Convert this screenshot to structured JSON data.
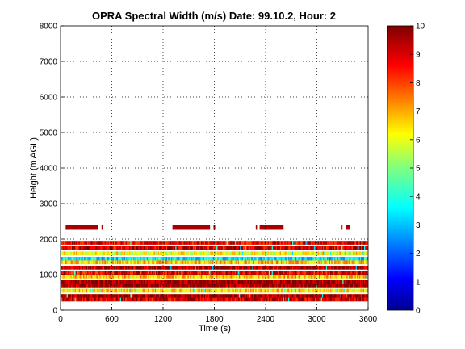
{
  "chart_data": {
    "type": "heatmap",
    "title": "OPRA Spectral Width (m/s)  Date: 99.10.2, Hour: 2",
    "xlabel": "Time (s)",
    "ylabel": "Height (m AGL)",
    "xlim": [
      0,
      3600
    ],
    "ylim": [
      0,
      8000
    ],
    "xticks": [
      "0",
      "600",
      "1200",
      "1800",
      "2400",
      "3000",
      "3600"
    ],
    "yticks": [
      "0",
      "1000",
      "2000",
      "3000",
      "4000",
      "5000",
      "6000",
      "7000",
      "8000"
    ],
    "grid": true,
    "colorbar": {
      "clim": [
        0,
        10
      ],
      "ticks": [
        "0",
        "1",
        "2",
        "3",
        "4",
        "5",
        "6",
        "7",
        "8",
        "9",
        "10"
      ],
      "colormap": "jet"
    },
    "data_region": {
      "x_range_s": [
        0,
        3600
      ],
      "height_range_m": [
        250,
        1950
      ],
      "description_values": [
        {
          "height_m": 1900,
          "value": 9.0
        },
        {
          "height_m": 1750,
          "value": 9.2
        },
        {
          "height_m": 1600,
          "value": 6.2
        },
        {
          "height_m": 1450,
          "value": 3.5
        },
        {
          "height_m": 1350,
          "value": 6.8
        },
        {
          "height_m": 1200,
          "value": 9.5
        },
        {
          "height_m": 1050,
          "value": 9.0
        },
        {
          "height_m": 950,
          "value": 6.8
        },
        {
          "height_m": 800,
          "value": 9.8
        },
        {
          "height_m": 700,
          "value": 9.8
        },
        {
          "height_m": 550,
          "value": 6.5
        },
        {
          "height_m": 400,
          "value": 9.7
        },
        {
          "height_m": 300,
          "value": 9.2
        }
      ],
      "sparse_layer": {
        "height_m": 2330,
        "value": 9.6,
        "segments_s": [
          [
            60,
            440
          ],
          [
            480,
            495
          ],
          [
            1310,
            1750
          ],
          [
            1790,
            1810
          ],
          [
            2285,
            2300
          ],
          [
            2330,
            2610
          ],
          [
            3290,
            3300
          ],
          [
            3340,
            3390
          ]
        ]
      }
    }
  }
}
